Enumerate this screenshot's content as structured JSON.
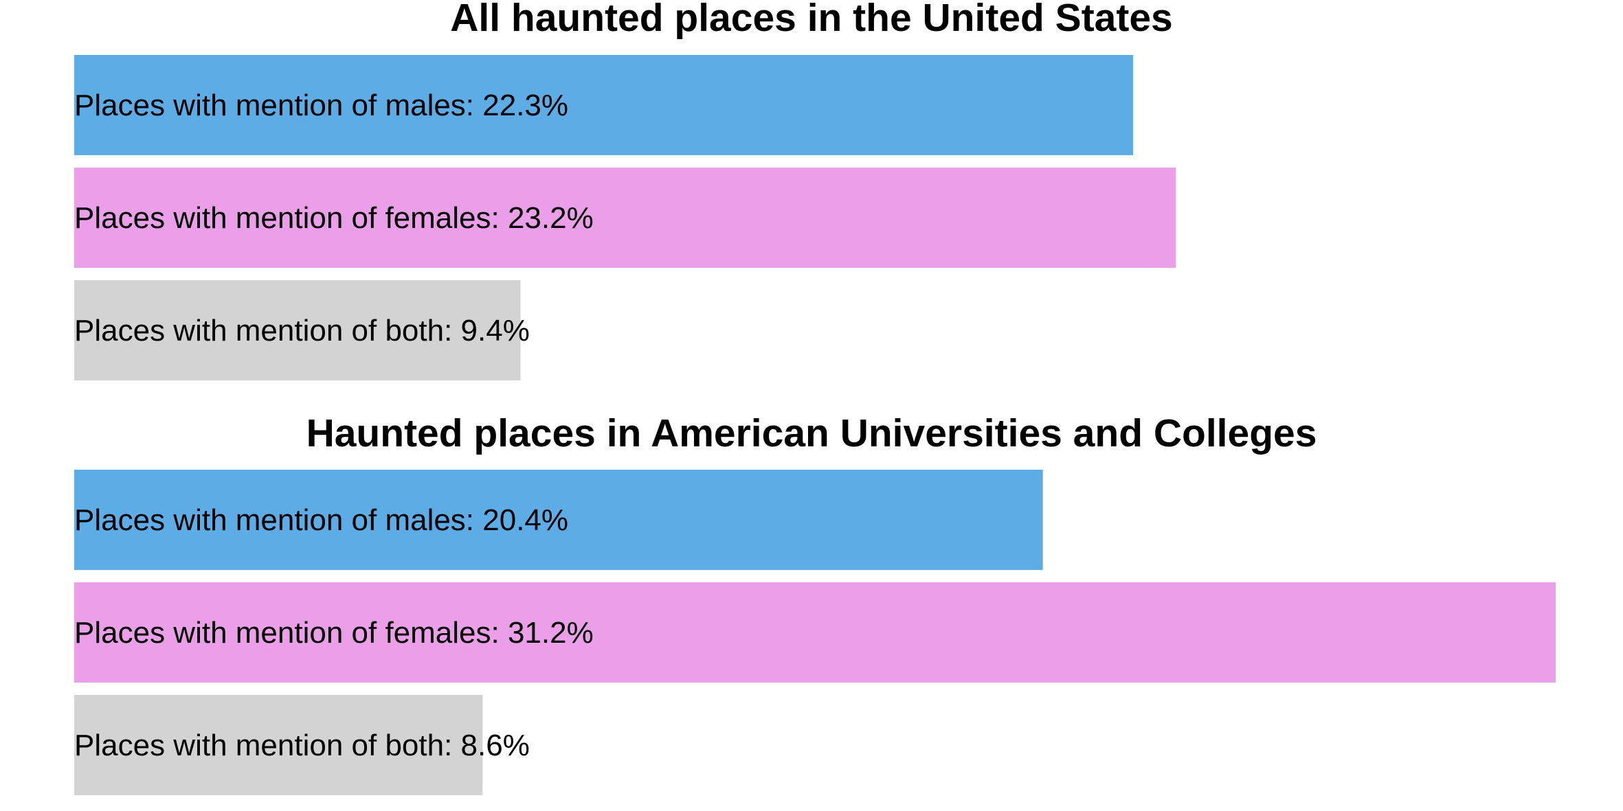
{
  "colors": {
    "males": "#5dacE6",
    "females": "#eb9fe9",
    "both": "#d3d3d3",
    "background": "#ffffff",
    "text": "#000000"
  },
  "chart_data": [
    {
      "type": "bar",
      "orientation": "horizontal",
      "title": "All haunted places in the United States",
      "categories": [
        "males",
        "females",
        "both"
      ],
      "values": [
        22.3,
        23.2,
        9.4
      ],
      "labels": [
        "Places with mention of males: 22.3%",
        "Places with mention of females: 23.2%",
        "Places with mention of both: 9.4%"
      ],
      "unit": "%",
      "xlim": [
        0,
        31.2
      ],
      "grid": false,
      "axes_visible": false
    },
    {
      "type": "bar",
      "orientation": "horizontal",
      "title": "Haunted places in American Universities and Colleges",
      "categories": [
        "males",
        "females",
        "both"
      ],
      "values": [
        20.4,
        31.2,
        8.6
      ],
      "labels": [
        "Places with mention of males: 20.4%",
        "Places with mention of females: 31.2%",
        "Places with mention of both: 8.6%"
      ],
      "unit": "%",
      "xlim": [
        0,
        31.2
      ],
      "grid": false,
      "axes_visible": false
    }
  ]
}
